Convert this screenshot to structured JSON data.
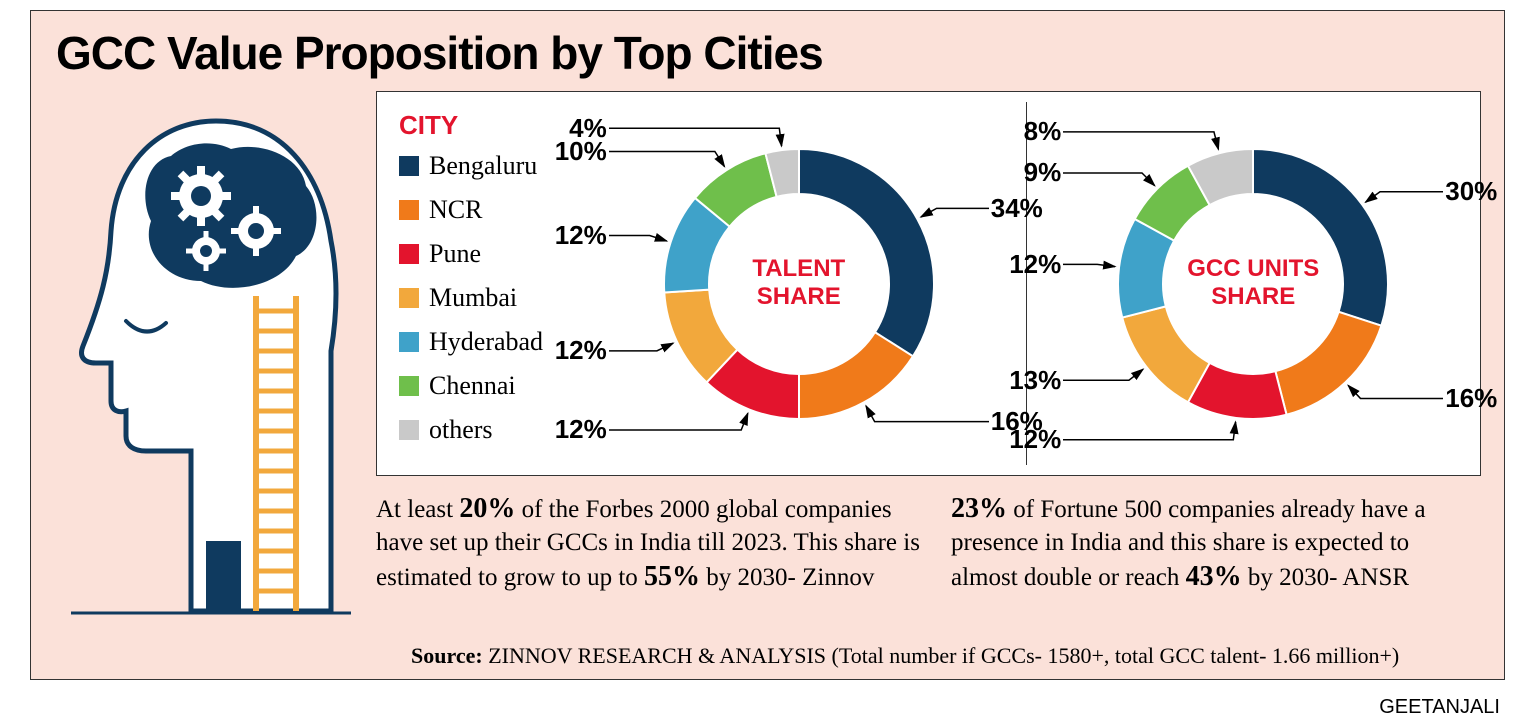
{
  "title": "GCC Value Proposition by Top Cities",
  "legend": {
    "header": "CITY",
    "items": [
      {
        "label": "Bengaluru",
        "color": "#0f3a5f"
      },
      {
        "label": "NCR",
        "color": "#f07a1a"
      },
      {
        "label": "Pune",
        "color": "#e3142d"
      },
      {
        "label": "Mumbai",
        "color": "#f2a83c"
      },
      {
        "label": "Hyderabad",
        "color": "#3fa2c9"
      },
      {
        "label": "Chennai",
        "color": "#6fbf4b"
      },
      {
        "label": "others",
        "color": "#c9c9c9"
      }
    ]
  },
  "charts": [
    {
      "center_label_line1": "TALENT",
      "center_label_line2": "SHARE",
      "slices": [
        {
          "city": "Bengaluru",
          "value": 34,
          "color": "#0f3a5f"
        },
        {
          "city": "NCR",
          "value": 16,
          "color": "#f07a1a"
        },
        {
          "city": "Pune",
          "value": 12,
          "color": "#e3142d"
        },
        {
          "city": "Mumbai",
          "value": 12,
          "color": "#f2a83c"
        },
        {
          "city": "Hyderabad",
          "value": 12,
          "color": "#3fa2c9"
        },
        {
          "city": "Chennai",
          "value": 10,
          "color": "#6fbf4b"
        },
        {
          "city": "others",
          "value": 4,
          "color": "#c9c9c9"
        }
      ]
    },
    {
      "center_label_line1": "GCC UNITS",
      "center_label_line2": "SHARE",
      "slices": [
        {
          "city": "Bengaluru",
          "value": 30,
          "color": "#0f3a5f"
        },
        {
          "city": "NCR",
          "value": 16,
          "color": "#f07a1a"
        },
        {
          "city": "Pune",
          "value": 12,
          "color": "#e3142d"
        },
        {
          "city": "Mumbai",
          "value": 13,
          "color": "#f2a83c"
        },
        {
          "city": "Hyderabad",
          "value": 12,
          "color": "#3fa2c9"
        },
        {
          "city": "Chennai",
          "value": 9,
          "color": "#6fbf4b"
        },
        {
          "city": "others",
          "value": 8,
          "color": "#c9c9c9"
        }
      ]
    }
  ],
  "donut": {
    "outer_radius": 135,
    "inner_radius": 90,
    "start_angle_deg": -90,
    "stroke": "#ffffff",
    "stroke_width": 2
  },
  "body_left": {
    "pre1": "At least ",
    "b1": "20%",
    "mid": " of the Forbes 2000 global companies have set up their GCCs in India till 2023. This share is estimated to grow to up to ",
    "b2": "55%",
    "post": " by 2030- Zinnov"
  },
  "body_right": {
    "b1": "23%",
    "mid": " of Fortune 500 companies already have a presence in India and this share is expected to almost double or reach ",
    "b2": "43%",
    "post": " by 2030- ANSR"
  },
  "source": {
    "label": "Source:",
    "text": " ZINNOV RESEARCH & ANALYSIS  (Total number if GCCs- 1580+, total GCC talent- 1.66 million+)"
  },
  "credit": "GEETANJALI",
  "illustration": {
    "head_stroke": "#0f3a5f",
    "head_fill": "#ffffff",
    "brain_fill": "#0f3a5f",
    "gear_fill": "#ffffff",
    "ladder_color": "#f2a83c",
    "door_color": "#0f3a5f"
  }
}
